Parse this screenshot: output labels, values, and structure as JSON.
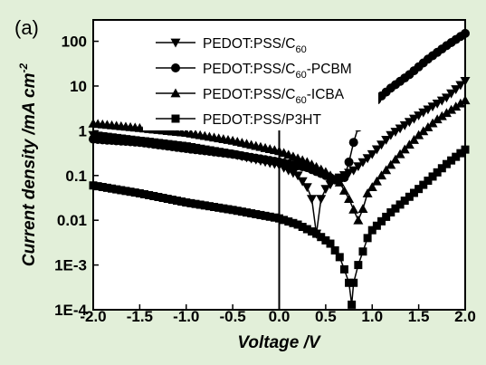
{
  "panel_label": "(a)",
  "chart_data": {
    "type": "line",
    "y_scale": "log",
    "x_axis": {
      "label": "Voltage /V",
      "range": [
        -2.0,
        2.0
      ],
      "ticks": [
        -2.0,
        -1.5,
        -1.0,
        -0.5,
        0.0,
        0.5,
        1.0,
        1.5,
        2.0
      ],
      "tick_labels": [
        "-2.0",
        "-1.5",
        "-1.0",
        "-0.5",
        "0.0",
        "0.5",
        "1.0",
        "1.5",
        "2.0"
      ]
    },
    "y_axis": {
      "label_main": "Current density /mA cm",
      "label_sup": "-2",
      "range": [
        0.0001,
        300
      ],
      "ticks": [
        0.0001,
        0.001,
        0.01,
        0.1,
        1,
        10,
        100
      ],
      "tick_labels": [
        "1E-4",
        "1E-3",
        "0.01",
        "0.1",
        "1",
        "10",
        "100"
      ]
    },
    "reference_line": {
      "x": 0.0
    },
    "legend": {
      "position": "top-center",
      "entries": [
        {
          "series": 0,
          "main": "PEDOT:PSS/C",
          "sub": "60",
          "suffix": ""
        },
        {
          "series": 1,
          "main": "PEDOT:PSS/C",
          "sub": "60",
          "suffix": "-PCBM"
        },
        {
          "series": 2,
          "main": "PEDOT:PSS/C",
          "sub": "60",
          "suffix": "-ICBA"
        },
        {
          "series": 3,
          "main": "PEDOT:PSS/P3HT",
          "sub": "",
          "suffix": ""
        }
      ]
    },
    "series": [
      {
        "name": "PEDOT:PSS/C60",
        "marker": "triangle-down",
        "x": [
          -2.0,
          -1.5,
          -1.0,
          -0.5,
          0.0,
          0.2,
          0.3,
          0.35,
          0.4,
          0.45,
          0.5,
          0.6,
          0.8,
          1.0,
          1.2,
          1.5,
          1.8,
          2.0
        ],
        "y": [
          0.8,
          0.6,
          0.45,
          0.3,
          0.17,
          0.1,
          0.055,
          0.03,
          0.005,
          0.03,
          0.05,
          0.08,
          0.13,
          0.3,
          0.8,
          2.2,
          5.5,
          13
        ]
      },
      {
        "name": "PEDOT:PSS/C60-PCBM",
        "marker": "circle",
        "x": [
          -2.0,
          -1.5,
          -1.0,
          -0.5,
          0.0,
          0.3,
          0.5,
          0.6,
          0.7,
          0.75,
          0.8,
          0.85,
          0.9,
          1.0,
          1.2,
          1.4,
          1.6,
          1.8,
          2.0
        ],
        "y": [
          0.65,
          0.55,
          0.4,
          0.3,
          0.2,
          0.15,
          0.1,
          0.08,
          0.09,
          0.2,
          0.55,
          1.2,
          2.3,
          4,
          9,
          18,
          40,
          80,
          150
        ]
      },
      {
        "name": "PEDOT:PSS/C60-ICBA",
        "marker": "triangle-up",
        "x": [
          -2.0,
          -1.5,
          -1.0,
          -0.5,
          0.0,
          0.3,
          0.5,
          0.65,
          0.75,
          0.85,
          0.9,
          0.95,
          1.0,
          1.1,
          1.3,
          1.5,
          1.7,
          2.0
        ],
        "y": [
          1.45,
          1.15,
          0.9,
          0.6,
          0.35,
          0.2,
          0.12,
          0.07,
          0.03,
          0.01,
          0.018,
          0.04,
          0.055,
          0.1,
          0.3,
          0.8,
          1.8,
          4.8
        ]
      },
      {
        "name": "PEDOT:PSS/P3HT",
        "marker": "square",
        "x": [
          -2.0,
          -1.5,
          -1.0,
          -0.5,
          0.0,
          0.2,
          0.4,
          0.55,
          0.65,
          0.7,
          0.75,
          0.78,
          0.8,
          0.85,
          0.9,
          0.95,
          1.0,
          1.2,
          1.5,
          1.8,
          2.0
        ],
        "y": [
          0.06,
          0.04,
          0.025,
          0.017,
          0.011,
          0.008,
          0.005,
          0.003,
          0.0015,
          0.0008,
          0.0004,
          0.00013,
          0.0004,
          0.001,
          0.002,
          0.004,
          0.006,
          0.015,
          0.05,
          0.18,
          0.38
        ]
      }
    ]
  }
}
